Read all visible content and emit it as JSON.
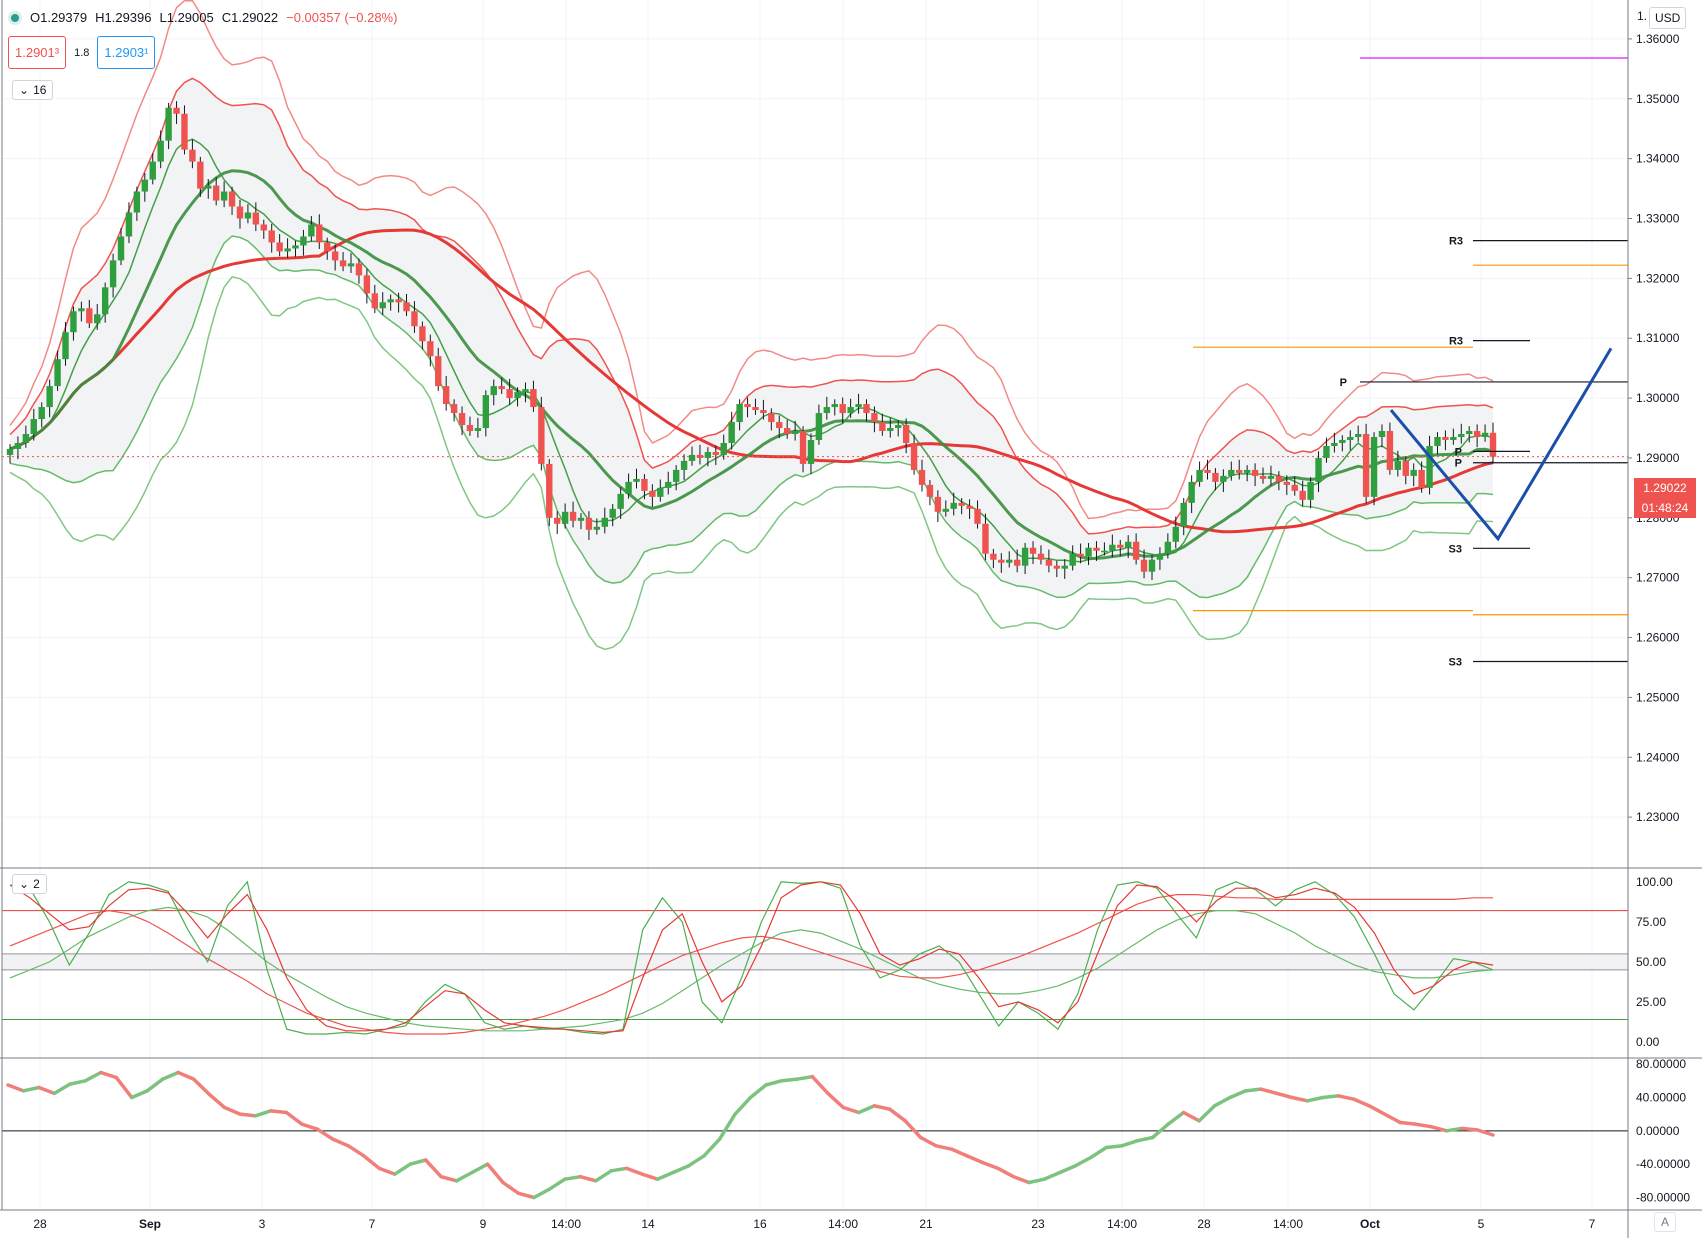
{
  "ohlc": {
    "open": "O1.29379",
    "high": "H1.29396",
    "low": "L1.29005",
    "close": "C1.29022",
    "change": "−0.00357 (−0.28%)"
  },
  "quote": {
    "sell": "1.2901³",
    "spread": "1.8",
    "buy": "1.2903¹"
  },
  "indicator_pills": {
    "main": "16",
    "osc1": "2"
  },
  "currency_button": "USD",
  "price_axis_top_label": "1.",
  "current_price": {
    "value": "1.29022",
    "countdown": "01:48:24",
    "color": "#ef5350"
  },
  "auto_button": "A",
  "colors": {
    "up": "#26a69a",
    "down": "#ef5350",
    "green_line": "#66bb6a",
    "blue_pattern": "#1c4fa8",
    "pivot_orange": "#ff9800",
    "magenta": "#e040fb"
  },
  "pivot_labels": [
    "R3",
    "R3",
    "P",
    "P",
    "P",
    "S3",
    "S3"
  ],
  "price_axis": {
    "ticks": [
      "1.36000",
      "1.35000",
      "1.34000",
      "1.33000",
      "1.32000",
      "1.31000",
      "1.30000",
      "1.29000",
      "1.28000",
      "1.27000",
      "1.26000",
      "1.25000",
      "1.24000",
      "1.23000"
    ]
  },
  "osc1_axis": {
    "ticks": [
      "100.00",
      "75.00",
      "50.00",
      "25.00",
      "0.00"
    ]
  },
  "osc2_axis": {
    "ticks": [
      "80.00000",
      "40.00000",
      "0.00000",
      "-40.00000",
      "-80.00000"
    ]
  },
  "time_axis": {
    "labels": [
      "28",
      "Sep",
      "3",
      "7",
      "9",
      "14:00",
      "14",
      "16",
      "14:00",
      "21",
      "23",
      "14:00",
      "28",
      "14:00",
      "Oct",
      "5",
      "7"
    ]
  },
  "chart_data": {
    "type": "candlestick",
    "closes": [
      1.2915,
      1.2925,
      1.294,
      1.2965,
      1.2985,
      1.302,
      1.3065,
      1.311,
      1.3145,
      1.315,
      1.3125,
      1.314,
      1.3185,
      1.323,
      1.327,
      1.331,
      1.3345,
      1.3365,
      1.3395,
      1.343,
      1.3485,
      1.3475,
      1.3415,
      1.3395,
      1.335,
      1.3355,
      1.333,
      1.3345,
      1.332,
      1.33,
      1.331,
      1.329,
      1.328,
      1.326,
      1.3245,
      1.325,
      1.3255,
      1.327,
      1.329,
      1.326,
      1.3245,
      1.323,
      1.322,
      1.3225,
      1.3205,
      1.3175,
      1.315,
      1.316,
      1.3165,
      1.316,
      1.3145,
      1.312,
      1.3095,
      1.307,
      1.302,
      1.299,
      1.2975,
      1.2955,
      1.2945,
      1.295,
      1.3005,
      1.302,
      1.3015,
      1.3,
      1.301,
      1.3015,
      1.2985,
      1.289,
      1.28,
      1.279,
      1.281,
      1.2795,
      1.28,
      1.278,
      1.2785,
      1.28,
      1.2815,
      1.284,
      1.286,
      1.2865,
      1.2845,
      1.2835,
      1.285,
      1.286,
      1.288,
      1.2895,
      1.2905,
      1.29,
      1.291,
      1.2905,
      1.2925,
      1.296,
      1.299,
      1.2985,
      1.298,
      1.2975,
      1.296,
      1.295,
      1.294,
      1.2945,
      1.289,
      1.293,
      1.2975,
      1.2985,
      1.299,
      1.2975,
      1.2985,
      1.299,
      1.2975,
      1.296,
      1.2945,
      1.295,
      1.2955,
      1.2925,
      1.288,
      1.2855,
      1.2835,
      1.281,
      1.2815,
      1.2825,
      1.282,
      1.2815,
      1.279,
      1.274,
      1.273,
      1.2725,
      1.273,
      1.272,
      1.275,
      1.274,
      1.273,
      1.272,
      1.2715,
      1.272,
      1.274,
      1.2735,
      1.275,
      1.2745,
      1.2745,
      1.2755,
      1.275,
      1.276,
      1.273,
      1.271,
      1.273,
      1.274,
      1.276,
      1.2785,
      1.2825,
      1.286,
      1.288,
      1.2875,
      1.286,
      1.287,
      1.288,
      1.2875,
      1.288,
      1.287,
      1.2865,
      1.287,
      1.286,
      1.2855,
      1.2845,
      1.283,
      1.286,
      1.29,
      1.292,
      1.2925,
      1.293,
      1.2935,
      1.294,
      1.2835,
      1.2935,
      1.2945,
      1.288,
      1.2895,
      1.287,
      1.288,
      1.285,
      1.292,
      1.2935,
      1.293,
      1.2935,
      1.294,
      1.2945,
      1.2935,
      1.2942,
      1.2902
    ],
    "osc1_fast": [
      98,
      96,
      75,
      48,
      68,
      92,
      100,
      98,
      94,
      70,
      50,
      85,
      100,
      45,
      8,
      5,
      5,
      6,
      5,
      8,
      10,
      25,
      36,
      30,
      12,
      8,
      10,
      8,
      8,
      6,
      5,
      8,
      70,
      90,
      75,
      25,
      12,
      40,
      75,
      100,
      99,
      100,
      96,
      60,
      40,
      45,
      55,
      60,
      50,
      30,
      10,
      25,
      18,
      8,
      30,
      70,
      98,
      100,
      96,
      80,
      65,
      95,
      100,
      95,
      85,
      95,
      100,
      92,
      78,
      55,
      30,
      20,
      35,
      52,
      50,
      45
    ],
    "osc1_slow": [
      98,
      90,
      80,
      70,
      72,
      85,
      95,
      96,
      93,
      80,
      65,
      80,
      92,
      70,
      40,
      20,
      10,
      7,
      7,
      8,
      12,
      22,
      32,
      30,
      20,
      12,
      10,
      9,
      8,
      7,
      6,
      7,
      40,
      70,
      80,
      50,
      25,
      35,
      60,
      90,
      98,
      100,
      98,
      80,
      55,
      48,
      52,
      58,
      55,
      40,
      22,
      25,
      20,
      12,
      25,
      55,
      85,
      98,
      97,
      88,
      75,
      88,
      96,
      96,
      90,
      92,
      96,
      93,
      84,
      68,
      45,
      30,
      35,
      45,
      50,
      48
    ],
    "osc1_ma1": [
      60,
      65,
      70,
      75,
      80,
      82,
      80,
      75,
      68,
      60,
      52,
      45,
      38,
      30,
      24,
      18,
      14,
      10,
      8,
      6,
      5,
      5,
      5,
      6,
      8,
      10,
      13,
      16,
      20,
      25,
      30,
      36,
      42,
      48,
      54,
      58,
      62,
      65,
      66,
      64,
      60,
      56,
      52,
      48,
      44,
      41,
      40,
      40,
      42,
      45,
      49,
      53,
      58,
      63,
      68,
      74,
      80,
      86,
      90,
      92,
      92,
      91,
      90,
      90,
      89,
      89,
      89,
      89,
      89,
      89,
      89,
      89,
      89,
      89,
      90,
      90
    ],
    "osc1_ma2": [
      40,
      45,
      50,
      58,
      66,
      72,
      78,
      82,
      84,
      82,
      78,
      70,
      60,
      50,
      42,
      35,
      28,
      22,
      18,
      15,
      12,
      10,
      9,
      8,
      7,
      7,
      7,
      8,
      9,
      10,
      12,
      14,
      18,
      24,
      32,
      40,
      48,
      55,
      62,
      68,
      70,
      68,
      63,
      58,
      52,
      46,
      40,
      36,
      33,
      31,
      30,
      30,
      32,
      35,
      40,
      46,
      54,
      62,
      70,
      76,
      80,
      82,
      82,
      80,
      74,
      68,
      60,
      54,
      48,
      44,
      42,
      40,
      40,
      42,
      44,
      45
    ],
    "osc2": [
      55,
      48,
      52,
      45,
      56,
      60,
      70,
      64,
      40,
      48,
      62,
      70,
      62,
      44,
      28,
      20,
      18,
      24,
      22,
      8,
      2,
      -10,
      -18,
      -30,
      -45,
      -52,
      -40,
      -35,
      -55,
      -60,
      -50,
      -40,
      -62,
      -75,
      -80,
      -70,
      -58,
      -55,
      -60,
      -48,
      -45,
      -52,
      -58,
      -50,
      -42,
      -30,
      -10,
      20,
      40,
      55,
      60,
      62,
      65,
      45,
      28,
      22,
      30,
      26,
      12,
      -8,
      -18,
      -22,
      -30,
      -38,
      -45,
      -55,
      -62,
      -58,
      -50,
      -42,
      -32,
      -20,
      -18,
      -12,
      -8,
      8,
      22,
      12,
      30,
      40,
      48,
      50,
      45,
      40,
      36,
      40,
      42,
      38,
      30,
      20,
      10,
      8,
      5,
      0,
      3,
      1,
      -5
    ]
  }
}
